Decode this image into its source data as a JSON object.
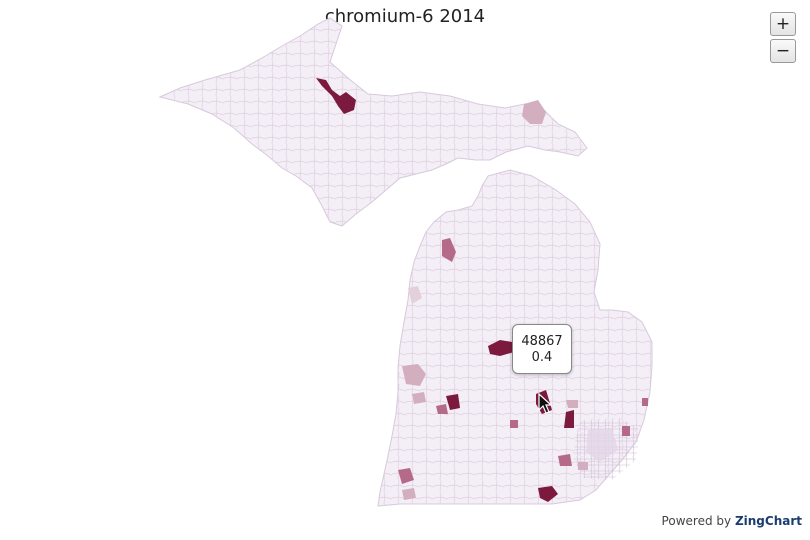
{
  "title": "chromium-6 2014",
  "zoom": {
    "in_label": "+",
    "out_label": "−"
  },
  "tooltip": {
    "zip": "48867",
    "value": "0.4"
  },
  "powered_by": {
    "prefix": "Powered by",
    "brand": "ZingChart"
  },
  "colors": {
    "base_fill": "#f4eef6",
    "border": "#d8c8dc",
    "high": "#7b1a3c",
    "mid": "#b56a8a",
    "low": "#d3aebf"
  },
  "icons": [
    "zoom-in-icon",
    "zoom-out-icon",
    "mouse-cursor-icon"
  ]
}
